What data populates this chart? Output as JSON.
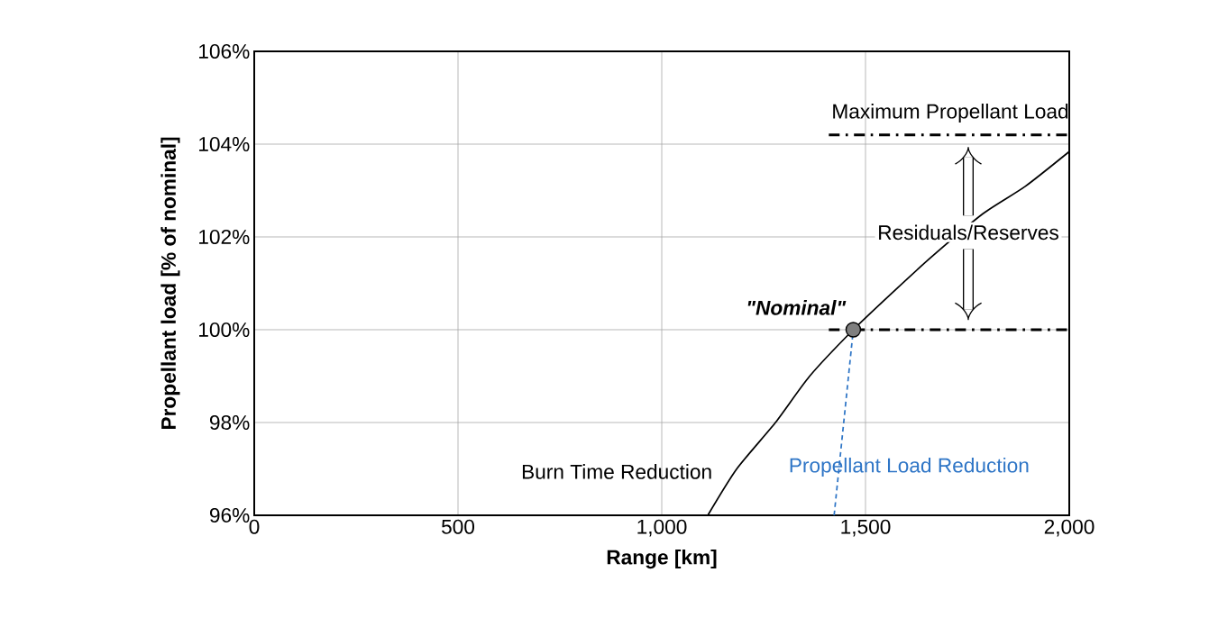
{
  "chart_data": {
    "type": "line",
    "xlabel": "Range [km]",
    "ylabel": "Propellant load [% of nominal]",
    "xlim": [
      0,
      2000
    ],
    "ylim": [
      96,
      106
    ],
    "xticks": [
      0,
      500,
      {
        "value": 1000,
        "label": "1,000"
      },
      {
        "value": 1500,
        "label": "1,500"
      },
      {
        "value": 2000,
        "label": "2,000"
      }
    ],
    "yticks": [
      {
        "value": 96,
        "label": "96%"
      },
      {
        "value": 98,
        "label": "98%"
      },
      {
        "value": 100,
        "label": "100%"
      },
      {
        "value": 102,
        "label": "102%"
      },
      {
        "value": 104,
        "label": "104%"
      },
      {
        "value": 106,
        "label": "106%"
      }
    ],
    "grid": true,
    "marker": "none",
    "line_style": "solid",
    "series": [
      {
        "name": "Burn Time Reduction",
        "color": "#000000",
        "x": [
          1113,
          1184,
          1279,
          1363,
          1470,
          1566,
          1662,
          1788,
          1892,
          2000
        ],
        "values": [
          96,
          97,
          98,
          99,
          100,
          100.8,
          101.57,
          102.5,
          103.09,
          103.84
        ]
      },
      {
        "name": "Propellant Load Reduction",
        "color": "#2e75c6",
        "line_style": "dashed",
        "x": [
          1423,
          1470
        ],
        "values": [
          96,
          100
        ]
      },
      {
        "color": "#000000",
        "line_style": "dashdot",
        "x": [
          1410,
          2000
        ],
        "values": [
          104.2,
          104.2
        ]
      },
      {
        "color": "#000000",
        "line_style": "dashdot",
        "x": [
          1410,
          2000
        ],
        "values": [
          100,
          100
        ]
      },
      {
        "type": "scatter",
        "marker": "circle",
        "color": "#7f7f7f",
        "x": [
          1470
        ],
        "values": [
          100
        ]
      }
    ],
    "annotations": [
      {
        "text": "\"Nominal\"",
        "x": 1470,
        "y": 100
      },
      {
        "text": "Maximum Propellant Load",
        "x": 1708,
        "y": 104.2
      },
      "Residuals/Reserves"
    ]
  }
}
